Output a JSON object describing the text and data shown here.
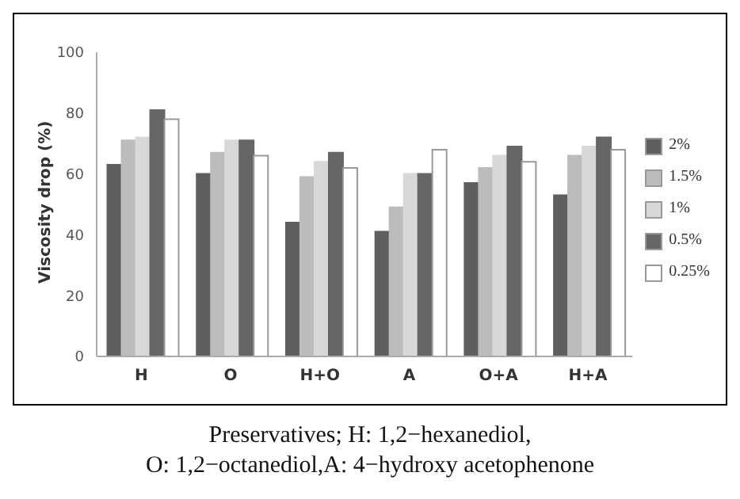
{
  "chart_data": {
    "type": "bar",
    "ylabel": "Viscosity drop (%)",
    "categories": [
      "H",
      "O",
      "H+O",
      "A",
      "O+A",
      "H+A"
    ],
    "series": [
      {
        "name": "2%",
        "color": "#5f5f5f",
        "values": [
          63,
          60,
          44,
          41,
          57,
          53
        ]
      },
      {
        "name": "1.5%",
        "color": "#bcbcbc",
        "values": [
          71,
          67,
          59,
          49,
          62,
          66
        ]
      },
      {
        "name": "1%",
        "color": "#d8d8d8",
        "values": [
          72,
          71,
          64,
          60,
          66,
          69
        ]
      },
      {
        "name": "0.5%",
        "color": "#666666",
        "values": [
          81,
          71,
          67,
          60,
          69,
          72
        ]
      },
      {
        "name": "0.25%",
        "color": "#ffffff",
        "values": [
          78,
          66,
          62,
          68,
          64,
          68
        ]
      }
    ],
    "ylim": [
      0,
      100
    ],
    "yticks": [
      0,
      20,
      40,
      60,
      80,
      100
    ],
    "grid": false,
    "legend": "right",
    "annotations": [
      "Preservatives; H: 1,2−hexanediol,",
      "O: 1,2−octanediol,A: 4−hydroxy acetophenone"
    ]
  }
}
